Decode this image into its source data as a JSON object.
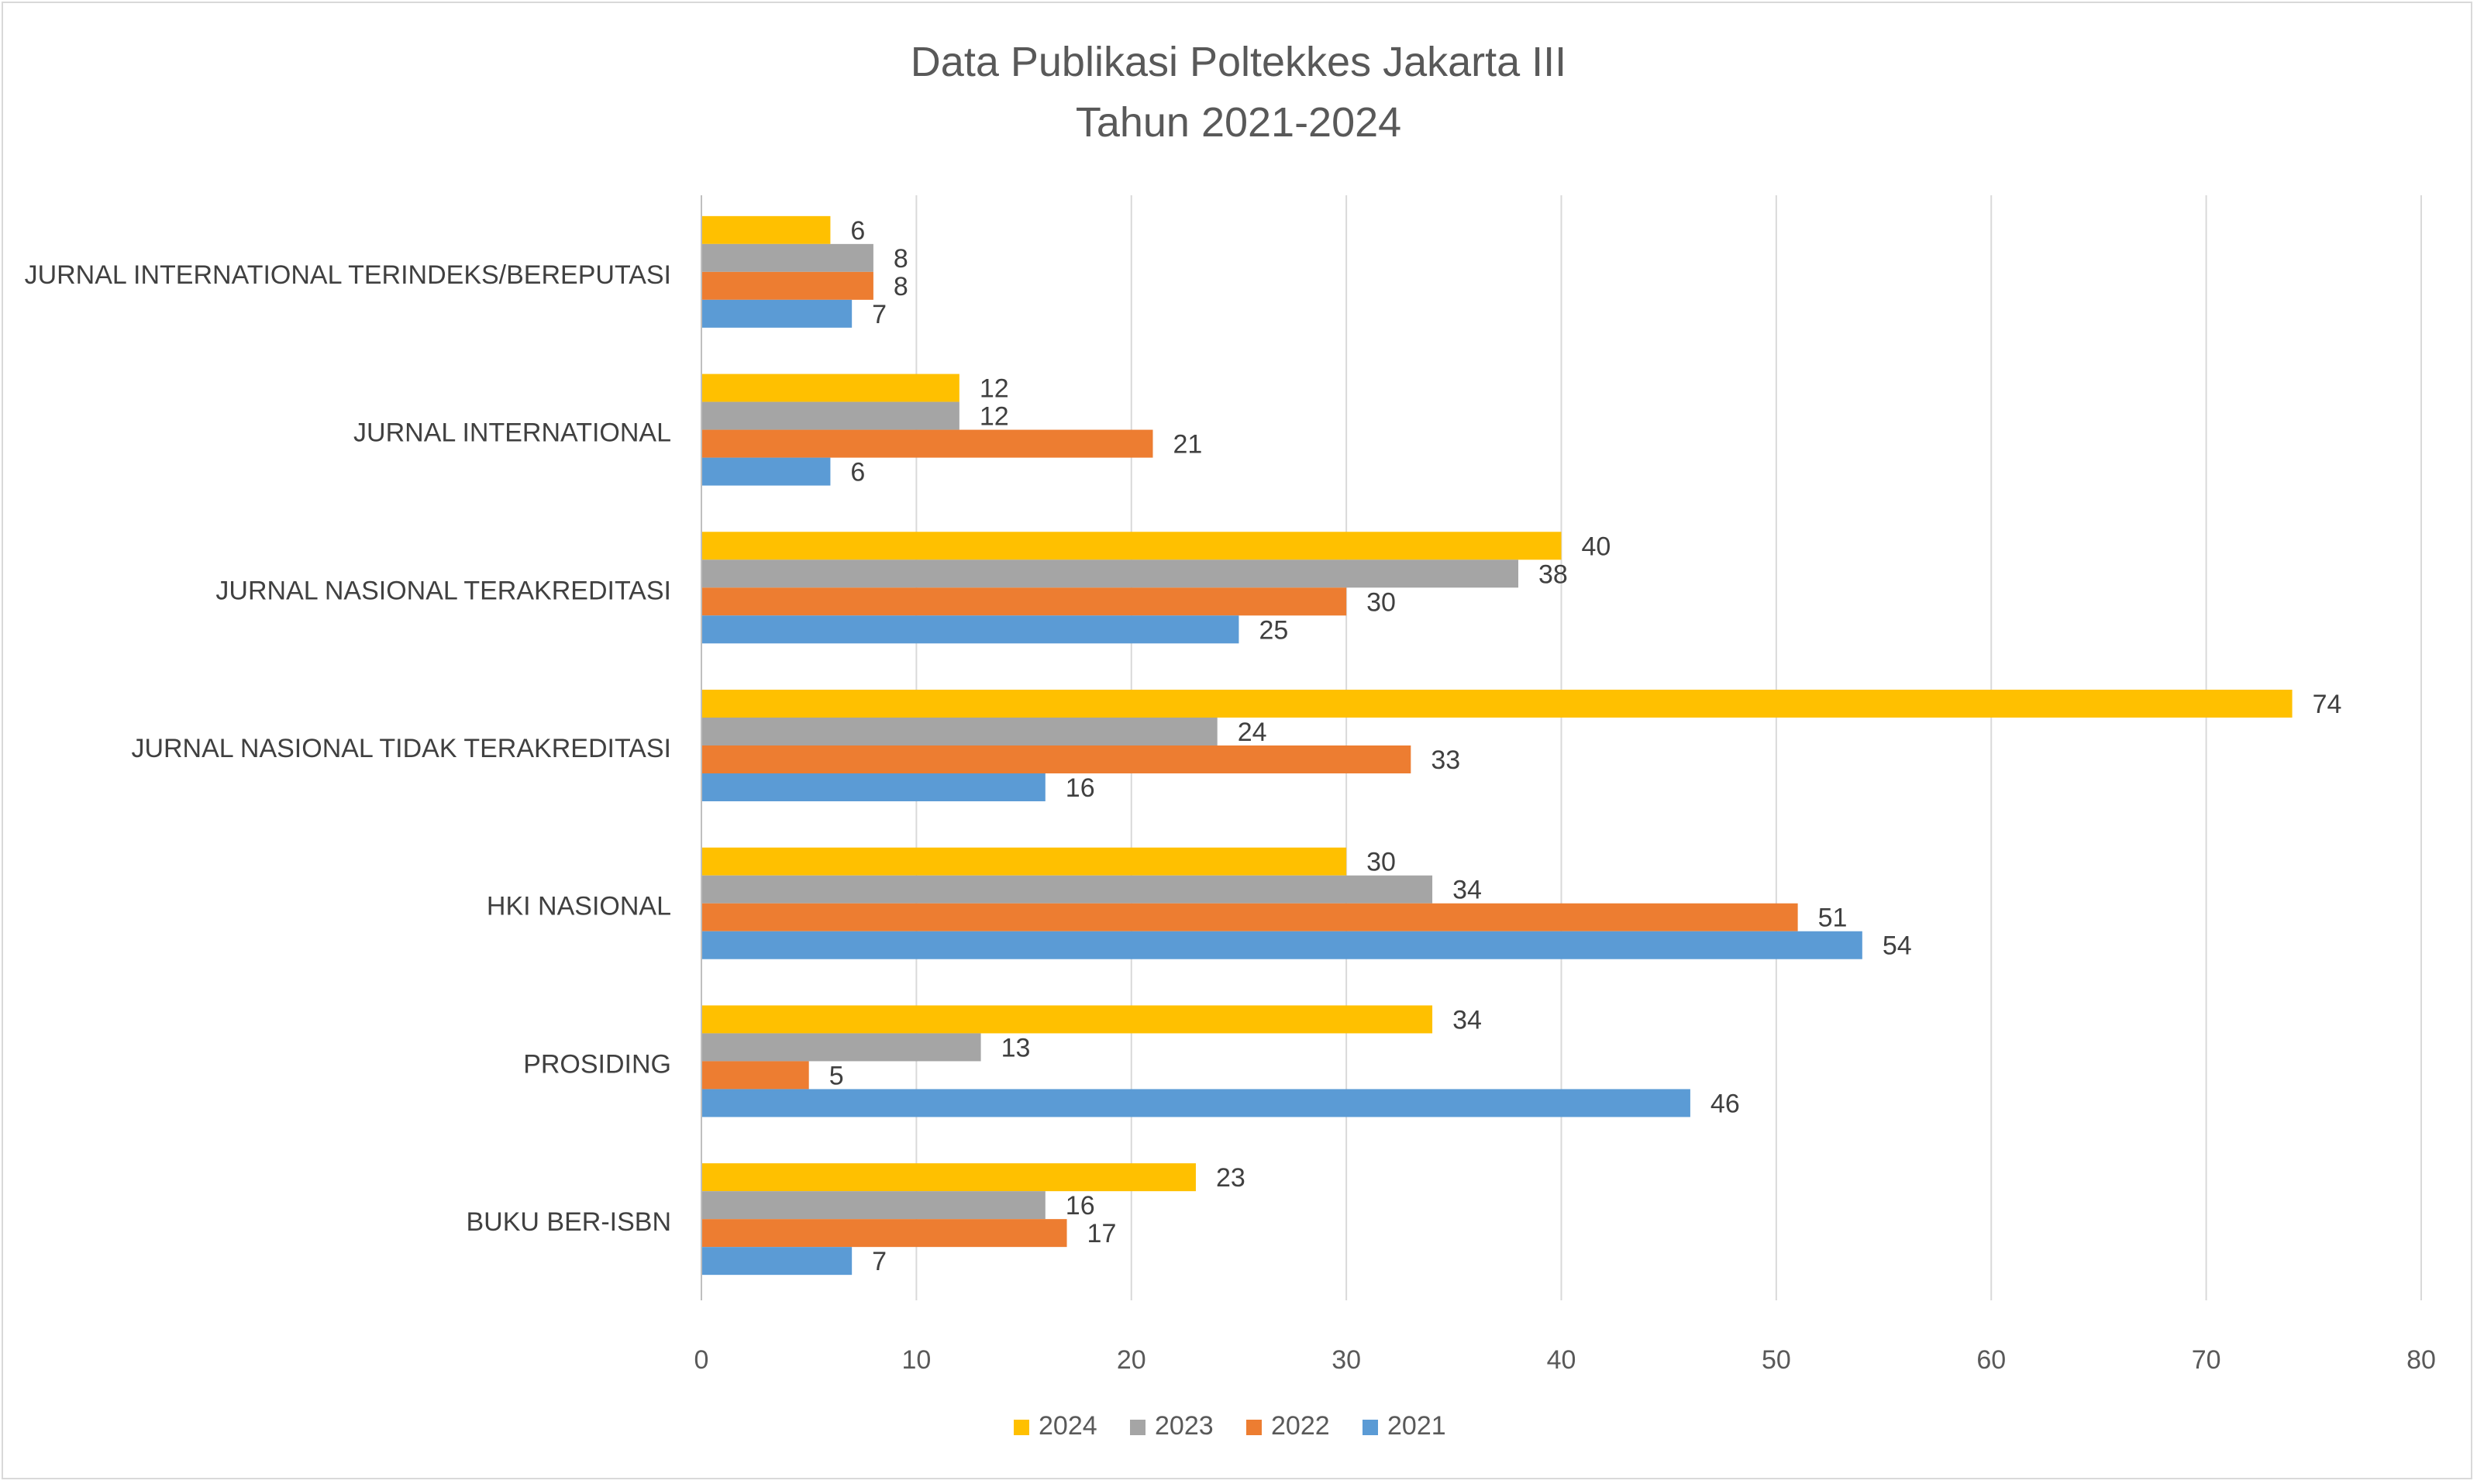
{
  "chart_data": {
    "type": "bar",
    "orientation": "horizontal",
    "title": "Data Publikasi Poltekkes Jakarta III",
    "subtitle": "Tahun 2021-2024",
    "categories": [
      "JURNAL INTERNATIONAL TERINDEKS/BEREPUTASI",
      "JURNAL INTERNATIONAL",
      "JURNAL NASIONAL TERAKREDITASI",
      "JURNAL NASIONAL TIDAK TERAKREDITASI",
      "HKI NASIONAL",
      "PROSIDING",
      "BUKU BER-ISBN"
    ],
    "series": [
      {
        "name": "2024",
        "color": "#FFC000",
        "values": [
          6,
          12,
          40,
          74,
          30,
          34,
          23
        ]
      },
      {
        "name": "2023",
        "color": "#A5A5A5",
        "values": [
          8,
          12,
          38,
          24,
          34,
          13,
          16
        ]
      },
      {
        "name": "2022",
        "color": "#ED7D31",
        "values": [
          8,
          21,
          30,
          33,
          51,
          5,
          17
        ]
      },
      {
        "name": "2021",
        "color": "#5B9BD5",
        "values": [
          7,
          6,
          25,
          16,
          54,
          46,
          7
        ]
      }
    ],
    "xlim": [
      0,
      80
    ],
    "xticks": [
      0,
      10,
      20,
      30,
      40,
      50,
      60,
      70,
      80
    ],
    "xlabel": "",
    "ylabel": "",
    "grid": true,
    "data_labels": true,
    "legend_position": "bottom"
  }
}
